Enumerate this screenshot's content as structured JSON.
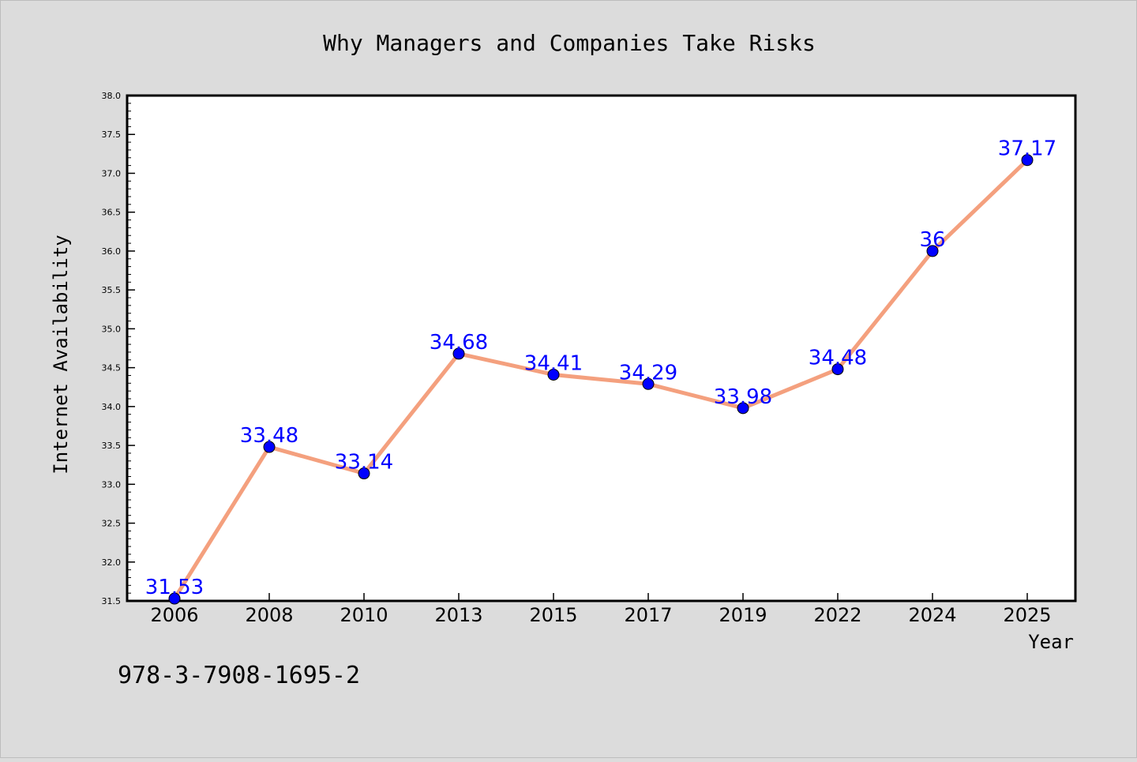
{
  "chart_data": {
    "type": "line",
    "title": "Why Managers and Companies Take Risks",
    "xlabel": "Year",
    "ylabel": "Internet Availability",
    "categories": [
      "2006",
      "2008",
      "2010",
      "2013",
      "2015",
      "2017",
      "2019",
      "2022",
      "2024",
      "2025"
    ],
    "series": [
      {
        "values": [
          31.53,
          33.48,
          33.14,
          34.68,
          34.41,
          34.29,
          33.98,
          34.48,
          36,
          37.17
        ],
        "labels": [
          "31.53",
          "33.48",
          "33.14",
          "34.68",
          "34.41",
          "34.29",
          "33.98",
          "34.48",
          "36",
          "37.17"
        ]
      }
    ],
    "ylim": [
      31.5,
      38.0
    ],
    "yticks": [
      "31.5",
      "32.0",
      "32.5",
      "33.0",
      "33.5",
      "34.0",
      "34.5",
      "35.0",
      "35.5",
      "36.0",
      "36.5",
      "37.0",
      "37.5",
      "38.0"
    ],
    "grid": false,
    "colors": {
      "line": "#f4a07e",
      "marker": "#0000ff",
      "data_label": "#0000ff",
      "plot_background": "#ffffff",
      "page_background": "#dcdcdc"
    }
  },
  "footnote": "978-3-7908-1695-2"
}
